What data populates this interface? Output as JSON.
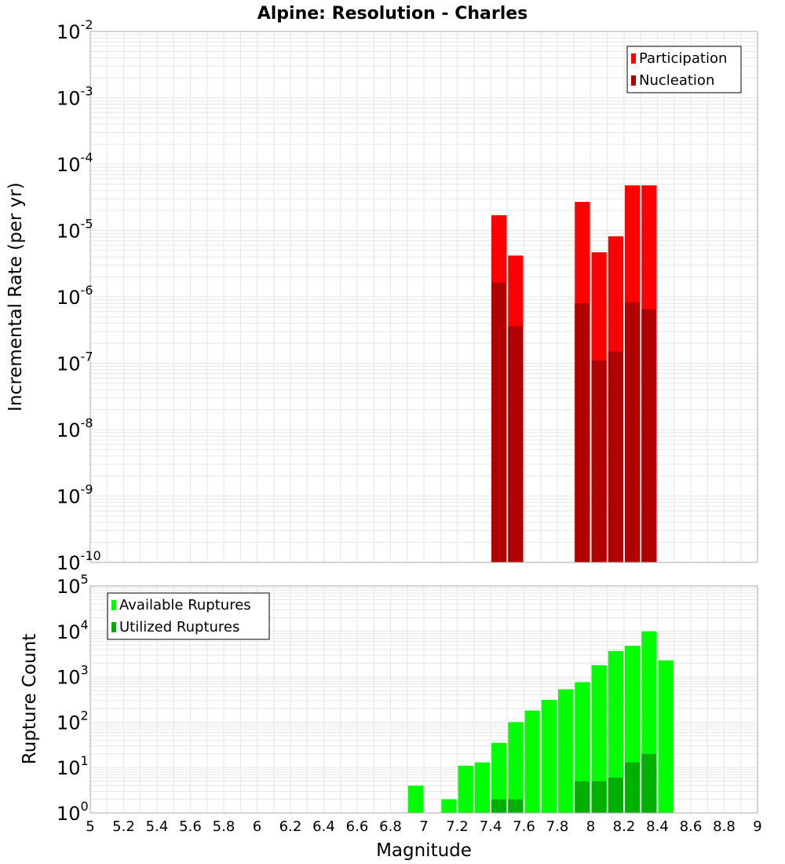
{
  "chart_data": [
    {
      "type": "bar",
      "title": "Alpine: Resolution - Charles",
      "xlabel": "",
      "ylabel": "Incremental Rate (per yr)",
      "yscale": "log",
      "xlim": [
        5,
        9
      ],
      "ylim_exponents": [
        -10,
        -2
      ],
      "bin_width": 0.1,
      "legend": {
        "position": "top-right",
        "entries": [
          {
            "name": "Participation",
            "color": "#ff0000"
          },
          {
            "name": "Nucleation",
            "color": "#b00000"
          }
        ]
      },
      "series": [
        {
          "name": "Participation",
          "color": "#ff0000",
          "points": [
            {
              "x": 7.45,
              "y": 1.7e-05
            },
            {
              "x": 7.55,
              "y": 4.2e-06
            },
            {
              "x": 7.95,
              "y": 2.7e-05
            },
            {
              "x": 8.05,
              "y": 4.7e-06
            },
            {
              "x": 8.15,
              "y": 8.2e-06
            },
            {
              "x": 8.25,
              "y": 4.8e-05
            },
            {
              "x": 8.35,
              "y": 4.8e-05
            }
          ]
        },
        {
          "name": "Nucleation",
          "color": "#b00000",
          "points": [
            {
              "x": 7.45,
              "y": 1.65e-06
            },
            {
              "x": 7.55,
              "y": 3.6e-07
            },
            {
              "x": 7.95,
              "y": 8e-07
            },
            {
              "x": 8.05,
              "y": 1.1e-07
            },
            {
              "x": 8.15,
              "y": 1.5e-07
            },
            {
              "x": 8.25,
              "y": 8.3e-07
            },
            {
              "x": 8.35,
              "y": 6.5e-07
            }
          ]
        }
      ]
    },
    {
      "type": "bar",
      "title": "",
      "xlabel": "Magnitude",
      "ylabel": "Rupture Count",
      "yscale": "log",
      "xlim": [
        5,
        9
      ],
      "ylim_exponents": [
        0,
        5
      ],
      "bin_width": 0.1,
      "legend": {
        "position": "top-left",
        "entries": [
          {
            "name": "Available Ruptures",
            "color": "#00ff00"
          },
          {
            "name": "Utilized Ruptures",
            "color": "#00b000"
          }
        ]
      },
      "series": [
        {
          "name": "Available Ruptures",
          "color": "#00ff00",
          "points": [
            {
              "x": 6.45,
              "y": 1
            },
            {
              "x": 6.95,
              "y": 4
            },
            {
              "x": 7.05,
              "y": 1
            },
            {
              "x": 7.15,
              "y": 2
            },
            {
              "x": 7.25,
              "y": 11
            },
            {
              "x": 7.35,
              "y": 13
            },
            {
              "x": 7.45,
              "y": 35
            },
            {
              "x": 7.55,
              "y": 100
            },
            {
              "x": 7.65,
              "y": 180
            },
            {
              "x": 7.75,
              "y": 310
            },
            {
              "x": 7.85,
              "y": 530
            },
            {
              "x": 7.95,
              "y": 760
            },
            {
              "x": 8.05,
              "y": 1800
            },
            {
              "x": 8.15,
              "y": 3700
            },
            {
              "x": 8.25,
              "y": 4800
            },
            {
              "x": 8.35,
              "y": 10000
            },
            {
              "x": 8.45,
              "y": 2300
            }
          ]
        },
        {
          "name": "Utilized Ruptures",
          "color": "#00b000",
          "points": [
            {
              "x": 7.45,
              "y": 2
            },
            {
              "x": 7.55,
              "y": 2
            },
            {
              "x": 7.65,
              "y": 1
            },
            {
              "x": 7.95,
              "y": 5
            },
            {
              "x": 8.05,
              "y": 5
            },
            {
              "x": 8.15,
              "y": 6
            },
            {
              "x": 8.25,
              "y": 13
            },
            {
              "x": 8.35,
              "y": 20
            }
          ]
        }
      ]
    }
  ],
  "x_ticks": [
    "5",
    "5.2",
    "5.4",
    "5.6",
    "5.8",
    "6",
    "6.2",
    "6.4",
    "6.6",
    "6.8",
    "7",
    "7.2",
    "7.4",
    "7.6",
    "7.8",
    "8",
    "8.2",
    "8.4",
    "8.6",
    "8.8",
    "9"
  ],
  "colors": {
    "grid": "#e6e6e6",
    "frame": "#aaaaaa"
  }
}
